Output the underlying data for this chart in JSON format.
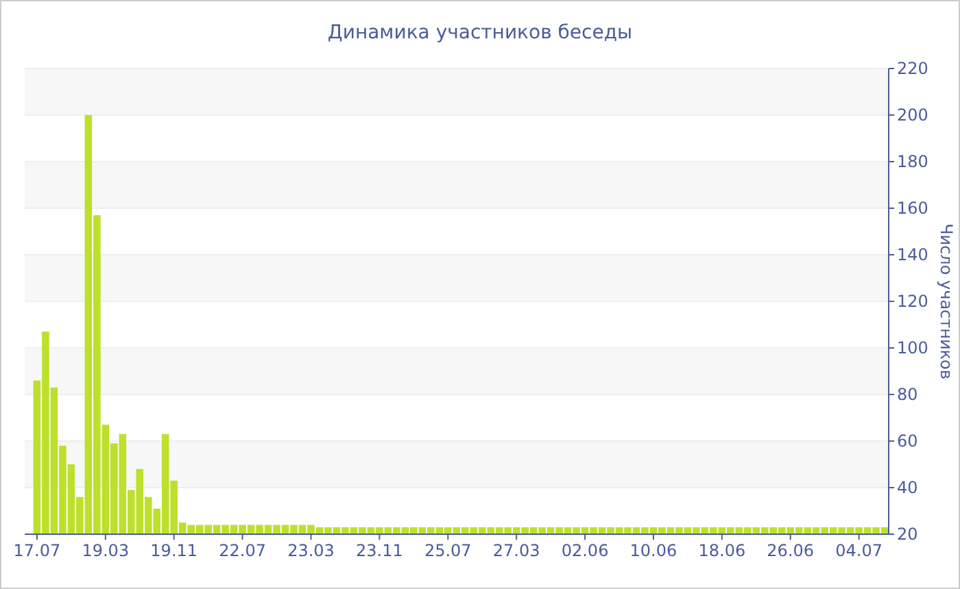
{
  "chart_data": {
    "type": "bar",
    "title": "Динамика участников беседы",
    "ylabel": "Число участников",
    "categories": [
      "17.07",
      null,
      null,
      null,
      null,
      null,
      null,
      null,
      "19.03",
      null,
      null,
      null,
      null,
      null,
      null,
      null,
      "19.11",
      null,
      null,
      null,
      null,
      null,
      null,
      null,
      "22.07",
      null,
      null,
      null,
      null,
      null,
      null,
      null,
      "23.03",
      null,
      null,
      null,
      null,
      null,
      null,
      null,
      "23.11",
      null,
      null,
      null,
      null,
      null,
      null,
      null,
      "25.07",
      null,
      null,
      null,
      null,
      null,
      null,
      null,
      "27.03",
      null,
      null,
      null,
      null,
      null,
      null,
      null,
      "02.06",
      null,
      null,
      null,
      null,
      null,
      null,
      null,
      "10.06",
      null,
      null,
      null,
      null,
      null,
      null,
      null,
      "18.06",
      null,
      null,
      null,
      null,
      null,
      null,
      null,
      "26.06",
      null,
      null,
      null,
      null,
      null,
      null,
      null,
      "04.07",
      null,
      null,
      null
    ],
    "values": [
      86,
      107,
      83,
      58,
      50,
      36,
      200,
      157,
      67,
      59,
      63,
      39,
      48,
      36,
      31,
      63,
      43,
      25,
      24,
      24,
      24,
      24,
      24,
      24,
      24,
      24,
      24,
      24,
      24,
      24,
      24,
      24,
      24,
      23,
      23,
      23,
      23,
      23,
      23,
      23,
      23,
      23,
      23,
      23,
      23,
      23,
      23,
      23,
      23,
      23,
      23,
      23,
      23,
      23,
      23,
      23,
      23,
      23,
      23,
      23,
      23,
      23,
      23,
      23,
      23,
      23,
      23,
      23,
      23,
      23,
      23,
      23,
      23,
      23,
      23,
      23,
      23,
      23,
      23,
      23,
      23,
      23,
      23,
      23,
      23,
      23,
      23,
      23,
      23,
      23,
      23,
      23,
      23,
      23,
      23,
      23,
      23,
      23,
      23,
      23
    ],
    "color": "#bde02c",
    "ylim": [
      20,
      220
    ],
    "yticks": [
      20,
      40,
      60,
      80,
      100,
      120,
      140,
      160,
      180,
      200,
      220
    ],
    "grid": "y"
  }
}
